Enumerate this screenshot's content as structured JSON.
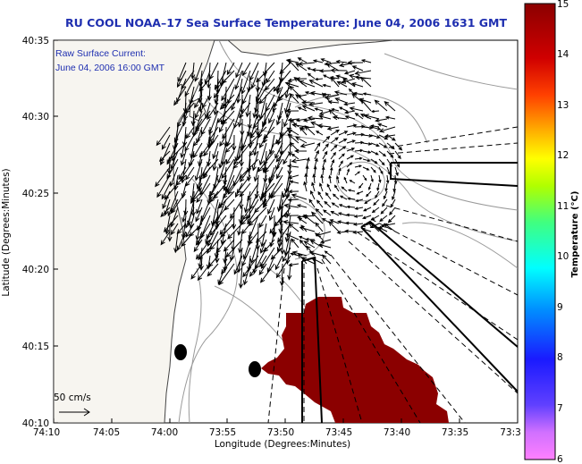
{
  "title": "RU COOL  NOAA–17  Sea Surface Temperature:  June 04, 2006 1631 GMT",
  "overlay": {
    "line1": "Raw Surface Current:",
    "line2": "June 04, 2006 16:00 GMT"
  },
  "axes": {
    "xlabel": "Longitude (Degrees:Minutes)",
    "ylabel": "Latitude (Degrees:Minutes)",
    "x_ticks": [
      "74:10",
      "74:05",
      "74:00",
      "73:55",
      "73:50",
      "73:45",
      "73:40",
      "73:35",
      "73:3"
    ],
    "y_ticks": [
      "40:35",
      "40:30",
      "40:25",
      "40:20",
      "40:15",
      "40:10"
    ]
  },
  "scale_arrow": {
    "label": "50 cm/s"
  },
  "colorbar": {
    "label": "Temperature (°C)",
    "ticks": [
      "15",
      "14",
      "13",
      "12",
      "11",
      "10",
      "9",
      "8",
      "7",
      "6"
    ],
    "min": 6,
    "max": 15,
    "colors": [
      "#ff80ff",
      "#a060ff",
      "#1a1aff",
      "#0090ff",
      "#00ffff",
      "#40ff80",
      "#b0ff00",
      "#ffff00",
      "#ffb000",
      "#ff4000",
      "#c00000",
      "#8b0000"
    ]
  },
  "colors": {
    "text_blue": "#1f2fb0",
    "sst_patch": "#8b0000",
    "land": "#f7f5f0"
  },
  "icons": [
    "hf-radar-site-1",
    "hf-radar-site-2"
  ]
}
